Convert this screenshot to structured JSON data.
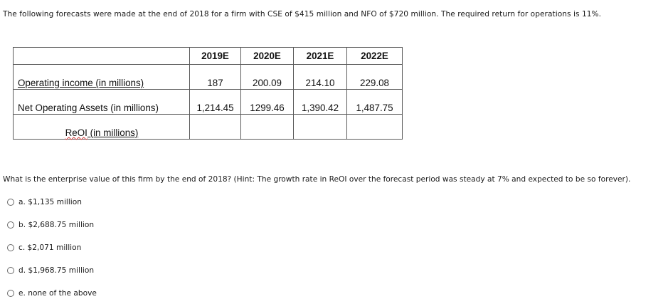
{
  "intro": "The following forecasts were made at the end of 2018 for a firm with CSE of $415 million and NFO of $720 million. The required return for operations is 11%.",
  "table": {
    "headers": [
      "",
      "2019E",
      "2020E",
      "2021E",
      "2022E"
    ],
    "rows": [
      {
        "label": "Operating income (in millions)",
        "values": [
          "187",
          "200.09",
          "214.10",
          "229.08"
        ]
      },
      {
        "label": "Net Operating Assets (in millions)",
        "values": [
          "1,214.45",
          "1299.46",
          "1,390.42",
          "1,487.75"
        ]
      },
      {
        "label_prefix": "ReOI",
        "label_suffix": " (in millions)",
        "values": [
          "",
          "",
          "",
          ""
        ]
      }
    ]
  },
  "question": "What is the enterprise value of this firm by the end of 2018? (Hint: The growth rate in ReOI over the forecast period was steady at 7% and expected to be so forever).",
  "options": [
    "a. $1,135 million",
    "b. $2,688.75 million",
    "c. $2,071 million",
    "d. $1,968.75 million",
    "e. none of the above"
  ]
}
